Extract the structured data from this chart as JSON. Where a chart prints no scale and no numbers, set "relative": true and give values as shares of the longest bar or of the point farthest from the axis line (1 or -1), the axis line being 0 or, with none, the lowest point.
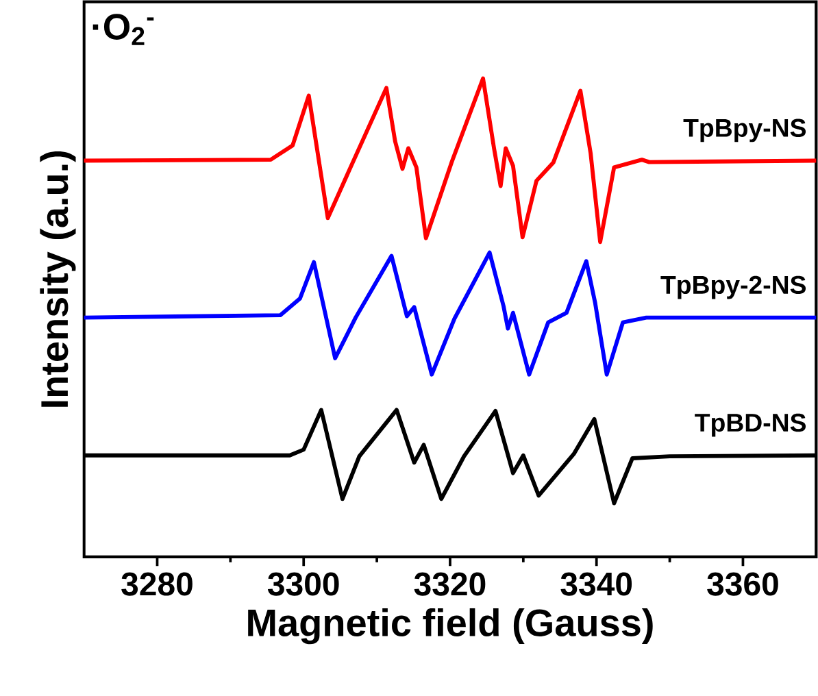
{
  "chart_data": {
    "type": "line",
    "xlabel": "Magnetic field (Gauss)",
    "ylabel": "Intensity (a.u.)",
    "relative": true,
    "xlim": [
      3270,
      3370
    ],
    "xticks": [
      3280,
      3300,
      3320,
      3340,
      3360
    ],
    "annotations": [
      "·O$_{2}$$^{-}$"
    ],
    "series": [
      {
        "name": "TpBpy-NS",
        "color": "#ff0000",
        "x": [
          3270,
          3295.5,
          3298.5,
          3300.7,
          3303.3,
          3306.4,
          3311.3,
          3312.5,
          3313.5,
          3314.3,
          3315.4,
          3316.7,
          3320.2,
          3324.5,
          3326.0,
          3326.9,
          3327.6,
          3328.6,
          3329.9,
          3331.8,
          3334.1,
          3337.8,
          3339.2,
          3340.5,
          3342.4,
          3346.2,
          3347.2,
          3370
        ],
        "values": [
          0.828,
          0.83,
          0.86,
          0.964,
          0.708,
          0.814,
          0.98,
          0.868,
          0.811,
          0.854,
          0.814,
          0.666,
          0.824,
          1.0,
          0.854,
          0.775,
          0.854,
          0.817,
          0.668,
          0.786,
          0.824,
          0.974,
          0.843,
          0.658,
          0.814,
          0.83,
          0.825,
          0.828
        ]
      },
      {
        "name": "TpBpy-2-NS",
        "color": "#0000ff",
        "x": [
          3270,
          3296.8,
          3299.5,
          3301.4,
          3304.3,
          3307.1,
          3312.0,
          3314.1,
          3315.1,
          3317.5,
          3320.6,
          3325.4,
          3327.3,
          3327.9,
          3328.6,
          3330.8,
          3333.4,
          3335.9,
          3338.6,
          3339.8,
          3341.4,
          3343.6,
          3346.8,
          3370
        ],
        "values": [
          0.5,
          0.505,
          0.54,
          0.616,
          0.415,
          0.5,
          0.629,
          0.503,
          0.522,
          0.381,
          0.498,
          0.636,
          0.524,
          0.477,
          0.51,
          0.381,
          0.49,
          0.51,
          0.618,
          0.532,
          0.381,
          0.49,
          0.5,
          0.5
        ]
      },
      {
        "name": "TpBD-NS",
        "color": "#000000",
        "x": [
          3270,
          3298.1,
          3300.0,
          3302.4,
          3305.3,
          3307.6,
          3312.7,
          3315.1,
          3316.4,
          3318.8,
          3321.9,
          3326.2,
          3328.6,
          3330.0,
          3332.1,
          3336.9,
          3339.7,
          3342.4,
          3344.9,
          3350,
          3370
        ],
        "values": [
          0.212,
          0.212,
          0.224,
          0.307,
          0.121,
          0.21,
          0.307,
          0.197,
          0.234,
          0.121,
          0.21,
          0.305,
          0.175,
          0.212,
          0.128,
          0.215,
          0.288,
          0.112,
          0.206,
          0.21,
          0.212
        ]
      }
    ]
  }
}
